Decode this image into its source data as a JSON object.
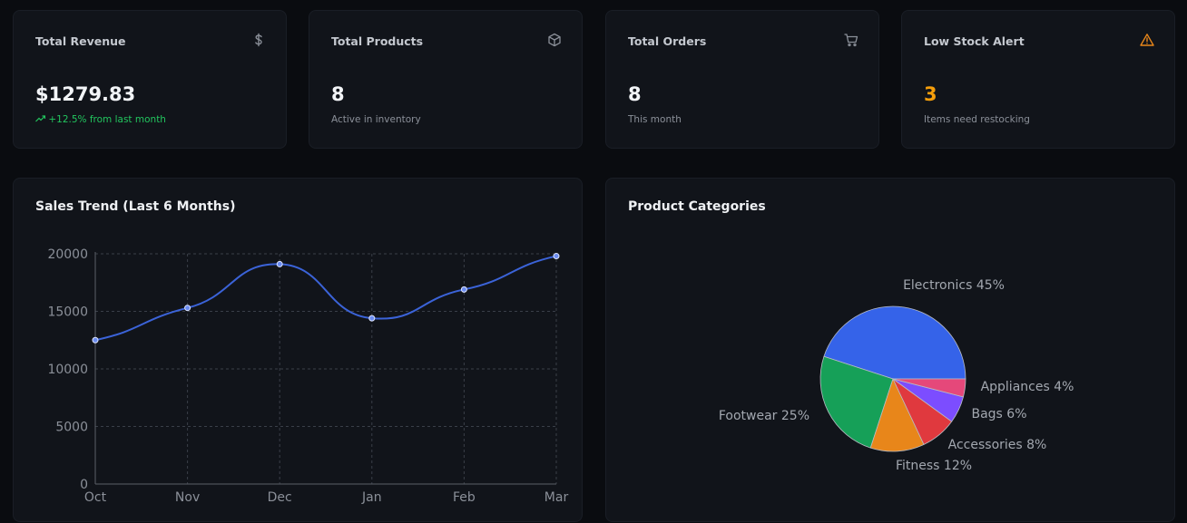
{
  "stats": {
    "revenue": {
      "title": "Total Revenue",
      "value": "$1279.83",
      "sub": "+12.5% from last month",
      "icon": "dollar-icon"
    },
    "products": {
      "title": "Total Products",
      "value": "8",
      "sub": "Active in inventory",
      "icon": "package-icon"
    },
    "orders": {
      "title": "Total Orders",
      "value": "8",
      "sub": "This month",
      "icon": "cart-icon"
    },
    "low_stock": {
      "title": "Low Stock Alert",
      "value": "3",
      "sub": "Items need restocking",
      "icon": "alert-triangle-icon",
      "accent": "#f59e0b"
    }
  },
  "sales_chart": {
    "title": "Sales Trend (Last 6 Months)",
    "chart_data": {
      "type": "line",
      "categories": [
        "Oct",
        "Nov",
        "Dec",
        "Jan",
        "Feb",
        "Mar"
      ],
      "values": [
        12500,
        15300,
        19100,
        14400,
        16900,
        19800
      ],
      "ylim": [
        0,
        20000
      ],
      "yticks": [
        0,
        5000,
        10000,
        15000,
        20000
      ],
      "grid": true,
      "line_color": "#3b63d8"
    }
  },
  "category_chart": {
    "title": "Product Categories",
    "chart_data": {
      "type": "pie",
      "labels": [
        "Electronics",
        "Footwear",
        "Fitness",
        "Accessories",
        "Bags",
        "Appliances"
      ],
      "values": [
        45,
        25,
        12,
        8,
        6,
        4
      ],
      "colors": [
        "#3563e9",
        "#16a058",
        "#e8861a",
        "#e0393e",
        "#7c4dff",
        "#e5487a"
      ]
    }
  }
}
